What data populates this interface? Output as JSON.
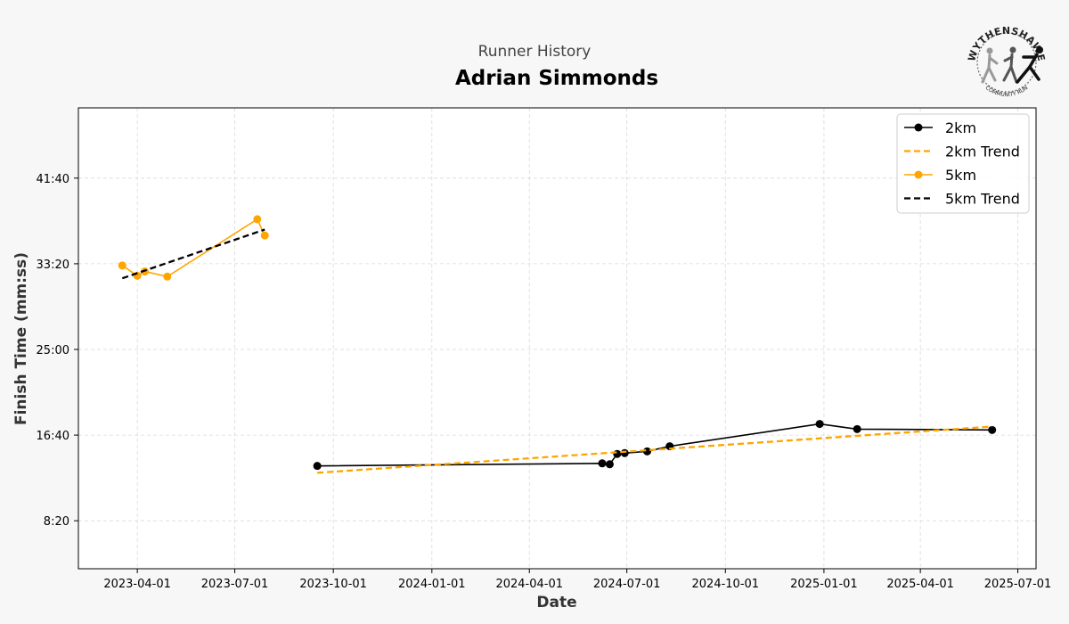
{
  "page": {
    "supertitle": "Runner History",
    "runner_name": "Adrian Simmonds",
    "logo": {
      "text_top": "WYTHENSHAWE",
      "text_bottom": "COMMUNITY RUN"
    }
  },
  "chart_data": {
    "type": "line",
    "title": "Adrian Simmonds",
    "subtitle": "Runner History",
    "xlabel": "Date",
    "ylabel": "Finish Time (mm:ss)",
    "grid": true,
    "legend_placement": "top-right",
    "xlim": [
      "2023-02-05",
      "2025-07-18"
    ],
    "ylim": [
      "3:40",
      "48:30"
    ],
    "x_ticks": [
      "2023-04-01",
      "2023-07-01",
      "2023-10-01",
      "2024-01-01",
      "2024-04-01",
      "2024-07-01",
      "2024-10-01",
      "2025-01-01",
      "2025-04-01",
      "2025-07-01"
    ],
    "y_ticks": [
      "8:20",
      "16:40",
      "25:00",
      "33:20",
      "41:40"
    ],
    "series": [
      {
        "name": "2km",
        "color": "#000000",
        "style": "solid",
        "marker": "circle",
        "points": [
          {
            "date": "2023-09-16",
            "time": "13:40"
          },
          {
            "date": "2024-06-08",
            "time": "13:55"
          },
          {
            "date": "2024-06-15",
            "time": "13:50"
          },
          {
            "date": "2024-06-22",
            "time": "14:50"
          },
          {
            "date": "2024-06-29",
            "time": "14:55"
          },
          {
            "date": "2024-07-20",
            "time": "15:05"
          },
          {
            "date": "2024-08-10",
            "time": "15:35"
          },
          {
            "date": "2024-12-28",
            "time": "17:45"
          },
          {
            "date": "2025-02-01",
            "time": "17:15"
          },
          {
            "date": "2025-06-07",
            "time": "17:10"
          }
        ]
      },
      {
        "name": "2km Trend",
        "color": "#FFA500",
        "style": "dashed",
        "marker": "none",
        "points": [
          {
            "date": "2023-09-16",
            "time": "13:00"
          },
          {
            "date": "2025-06-07",
            "time": "17:30"
          }
        ]
      },
      {
        "name": "5km",
        "color": "#FFA500",
        "style": "solid",
        "marker": "circle",
        "points": [
          {
            "date": "2023-03-18",
            "time": "33:10"
          },
          {
            "date": "2023-04-01",
            "time": "32:10"
          },
          {
            "date": "2023-04-08",
            "time": "32:35"
          },
          {
            "date": "2023-04-29",
            "time": "32:05"
          },
          {
            "date": "2023-07-22",
            "time": "37:40"
          },
          {
            "date": "2023-07-29",
            "time": "36:05"
          }
        ]
      },
      {
        "name": "5km Trend",
        "color": "#000000",
        "style": "dashed",
        "marker": "none",
        "points": [
          {
            "date": "2023-03-18",
            "time": "31:55"
          },
          {
            "date": "2023-07-29",
            "time": "36:40"
          }
        ]
      }
    ]
  }
}
